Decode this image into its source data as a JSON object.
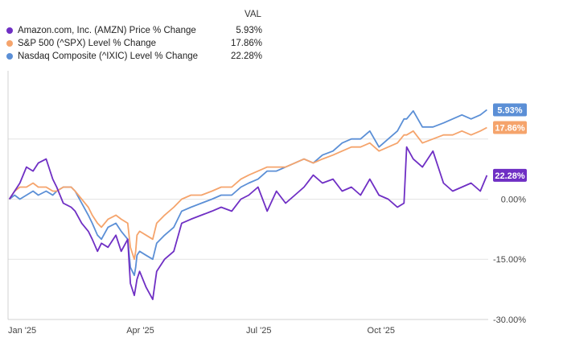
{
  "legend": {
    "header": "VAL",
    "items": [
      {
        "label": "Amazon.com, Inc. (AMZN) Price % Change",
        "value": "5.93%",
        "color": "#6f2fc4"
      },
      {
        "label": "S&P 500 (^SPX) Level % Change",
        "value": "17.86%",
        "color": "#f5a46c"
      },
      {
        "label": "Nasdaq Composite (^IXIC) Level % Change",
        "value": "22.28%",
        "color": "#5b8fd6"
      }
    ]
  },
  "chart_data": {
    "type": "line",
    "title": "",
    "xlabel": "",
    "ylabel": "",
    "ylim": [
      -30,
      32
    ],
    "x_ticks": [
      "Jan '25",
      "Apr '25",
      "Jul '25",
      "Oct '25"
    ],
    "y_ticks": [
      "0.00%",
      "-15.00%",
      "-30.00%"
    ],
    "grid": "horizontal",
    "end_labels": [
      "22.28%",
      "17.86%",
      "5.93%"
    ],
    "x": [
      "2025-01-02",
      "2025-01-06",
      "2025-01-10",
      "2025-01-15",
      "2025-01-20",
      "2025-01-24",
      "2025-01-30",
      "2025-02-04",
      "2025-02-07",
      "2025-02-12",
      "2025-02-18",
      "2025-02-21",
      "2025-02-26",
      "2025-03-03",
      "2025-03-06",
      "2025-03-10",
      "2025-03-13",
      "2025-03-18",
      "2025-03-24",
      "2025-03-28",
      "2025-04-02",
      "2025-04-04",
      "2025-04-07",
      "2025-04-08",
      "2025-04-09",
      "2025-04-11",
      "2025-04-16",
      "2025-04-21",
      "2025-04-24",
      "2025-04-30",
      "2025-05-07",
      "2025-05-13",
      "2025-05-20",
      "2025-05-28",
      "2025-06-05",
      "2025-06-12",
      "2025-06-20",
      "2025-06-27",
      "2025-07-03",
      "2025-07-10",
      "2025-07-17",
      "2025-07-24",
      "2025-07-31",
      "2025-08-07",
      "2025-08-14",
      "2025-08-21",
      "2025-08-28",
      "2025-09-05",
      "2025-09-12",
      "2025-09-19",
      "2025-09-26",
      "2025-10-03",
      "2025-10-10",
      "2025-10-17",
      "2025-10-24",
      "2025-10-29",
      "2025-10-31",
      "2025-11-05",
      "2025-11-12",
      "2025-11-20",
      "2025-11-28",
      "2025-12-05",
      "2025-12-12",
      "2025-12-19",
      "2025-12-26",
      "2025-12-31"
    ],
    "series": [
      {
        "name": "Amazon.com, Inc. (AMZN) Price % Change",
        "color": "#6f2fc4",
        "values": [
          0,
          2,
          4,
          8,
          7,
          9,
          10,
          5,
          3,
          -1,
          -2,
          -3,
          -6,
          -8,
          -10,
          -13,
          -11,
          -12,
          -9,
          -13,
          -10,
          -21,
          -24,
          -22,
          -20,
          -18,
          -22,
          -25,
          -18,
          -15,
          -13,
          -6,
          -5,
          -4,
          -3,
          -2,
          -3,
          0,
          1,
          3,
          -3,
          2,
          -1,
          1,
          3,
          6,
          4,
          5,
          2,
          3,
          1,
          5,
          1,
          0,
          -2,
          -1,
          13,
          10,
          8,
          12,
          4,
          2,
          3,
          4,
          2,
          5.93
        ]
      },
      {
        "name": "S&P 500 (^SPX) Level % Change",
        "color": "#f5a46c",
        "values": [
          0,
          2,
          3,
          3,
          4,
          3,
          3,
          2,
          2,
          3,
          3,
          2,
          0,
          -2,
          -4,
          -6,
          -7,
          -5,
          -4,
          -5,
          -6,
          -12,
          -15,
          -13,
          -9,
          -8,
          -9,
          -10,
          -6,
          -4,
          -2,
          0,
          1,
          1,
          2,
          3,
          3,
          5,
          6,
          7,
          8,
          8,
          8,
          9,
          10,
          9,
          10,
          11,
          12,
          13,
          13,
          14,
          12,
          13,
          14,
          16,
          16,
          17,
          14,
          15,
          16,
          16,
          17,
          16,
          17,
          17.86
        ]
      },
      {
        "name": "Nasdaq Composite (^IXIC) Level % Change",
        "color": "#5b8fd6",
        "values": [
          0,
          1,
          0,
          1,
          2,
          1,
          2,
          1,
          2,
          3,
          3,
          2,
          -1,
          -4,
          -6,
          -9,
          -10,
          -7,
          -6,
          -8,
          -10,
          -17,
          -19,
          -17,
          -14,
          -13,
          -14,
          -15,
          -11,
          -9,
          -7,
          -3,
          -2,
          -1,
          0,
          1,
          1,
          3,
          4,
          5,
          7,
          7,
          8,
          9,
          10,
          9,
          11,
          12,
          14,
          15,
          15,
          17,
          13,
          15,
          17,
          20,
          20,
          22,
          18,
          18,
          19,
          20,
          21,
          20,
          21,
          22.28
        ]
      }
    ]
  }
}
